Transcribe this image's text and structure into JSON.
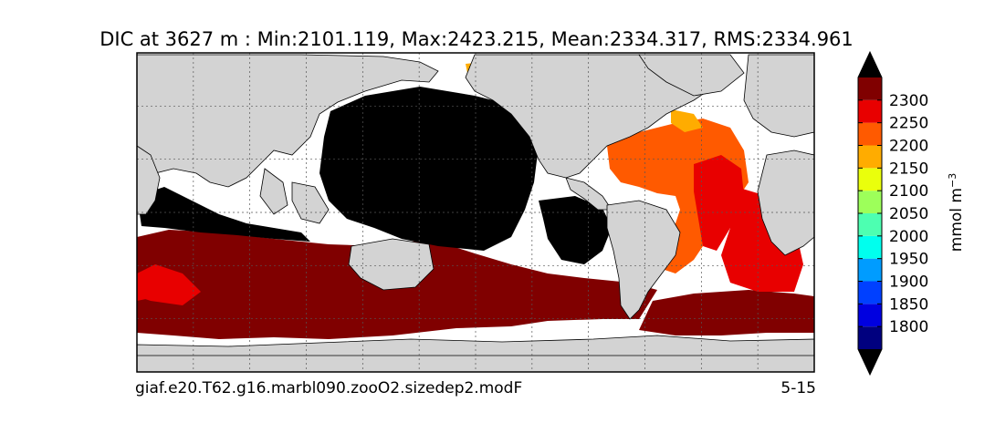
{
  "chart_data": {
    "type": "heatmap",
    "title": "DIC at 3627 m : Min:2101.119, Max:2423.215, Mean:2334.317, RMS:2334.961",
    "footer_left": "giaf.e20.T62.g16.marbl090.zooO2.sizedep2.modF",
    "footer_right": "5-15",
    "map": {
      "projection": "cylindrical global",
      "grid": true,
      "land_color": "#d3d3d3",
      "no_data_color": "#ffffff"
    },
    "colorbar": {
      "label_base": "mmol m",
      "label_exp": "−3",
      "levels": [
        1750,
        1800,
        1850,
        1900,
        1950,
        2000,
        2050,
        2100,
        2150,
        2200,
        2250,
        2300,
        2350
      ],
      "tick_labels": [
        "1800",
        "1850",
        "1900",
        "1950",
        "2000",
        "2050",
        "2100",
        "2150",
        "2200",
        "2250",
        "2300"
      ],
      "colors": [
        "#00007f",
        "#0000e0",
        "#0040ff",
        "#009cff",
        "#00ffee",
        "#4dffb1",
        "#9dff5a",
        "#eaff0c",
        "#ffac00",
        "#ff5a00",
        "#e80000",
        "#800000"
      ],
      "extend_under_color": "#000000",
      "extend_over_color": "#000000"
    }
  }
}
